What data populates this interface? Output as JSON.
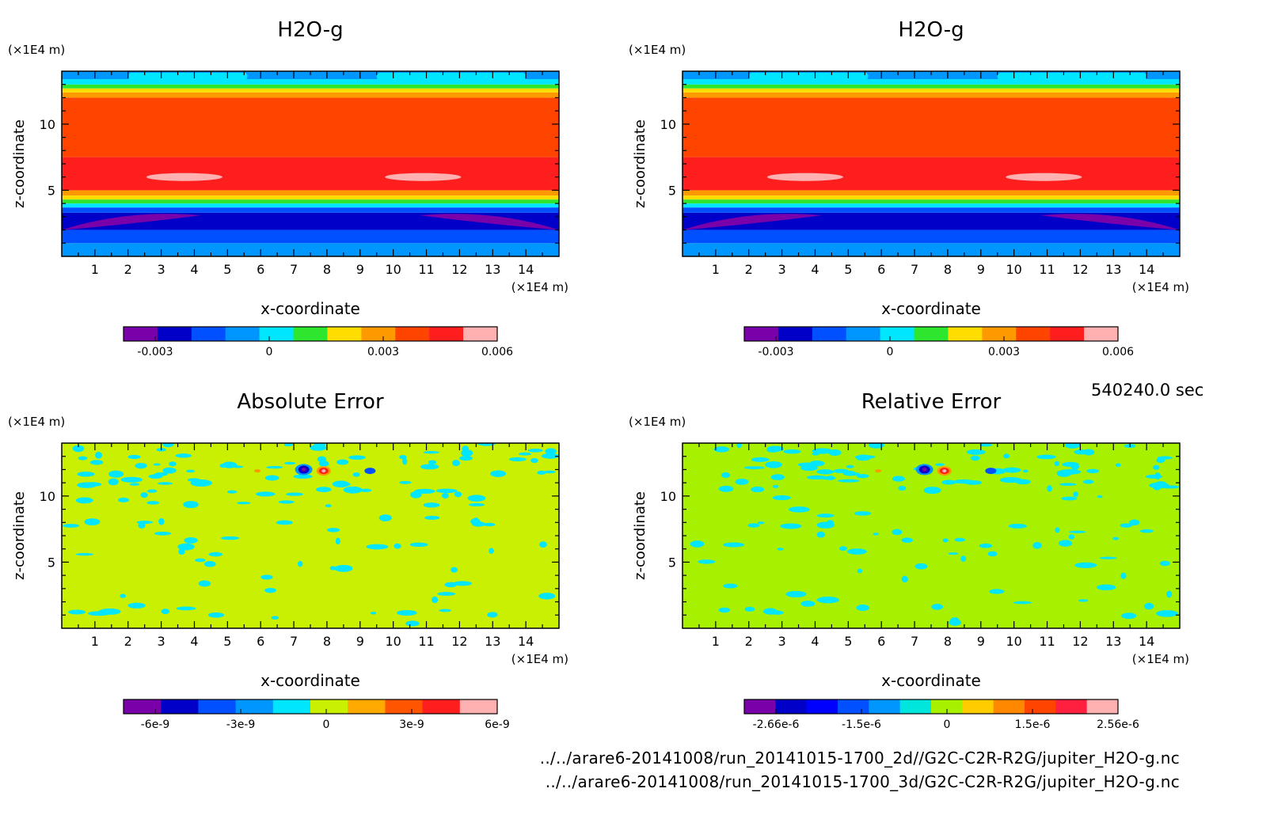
{
  "time": "540240.0 sec",
  "footer": {
    "line1": "../../arare6-20141008/run_20141015-1700_2d//G2C-C2R-R2G/jupiter_H2O-g.nc",
    "line2": "../../arare6-20141008/run_20141015-1700_3d/G2C-C2R-R2G/jupiter_H2O-g.nc"
  },
  "chart_data": [
    {
      "type": "heatmap",
      "title": "H2O-g",
      "xlabel": "x-coordinate",
      "ylabel": "z-coordinate",
      "x_unit": "(×1E4 m)",
      "y_unit": "(×1E4 m)",
      "x_ticks": [
        "1",
        "2",
        "3",
        "4",
        "5",
        "6",
        "7",
        "8",
        "9",
        "10",
        "11",
        "12",
        "13",
        "14"
      ],
      "y_ticks": [
        "5",
        "10"
      ],
      "xlim": [
        0,
        15
      ],
      "ylim": [
        0,
        14
      ],
      "colorbar": {
        "tick_labels": [
          "-0.003",
          "0",
          "0.003",
          "0.006"
        ],
        "colors": [
          "#7a00aa",
          "#0000c8",
          "#0050ff",
          "#0096ff",
          "#00e6ff",
          "#2ee62e",
          "#ffdd00",
          "#ff9900",
          "#ff4400",
          "#ff1e1e",
          "#ffb0b0"
        ]
      },
      "pattern": "h2o"
    },
    {
      "type": "heatmap",
      "title": "H2O-g",
      "xlabel": "x-coordinate",
      "ylabel": "z-coordinate",
      "x_unit": "(×1E4 m)",
      "y_unit": "(×1E4 m)",
      "x_ticks": [
        "1",
        "2",
        "3",
        "4",
        "5",
        "6",
        "7",
        "8",
        "9",
        "10",
        "11",
        "12",
        "13",
        "14"
      ],
      "y_ticks": [
        "5",
        "10"
      ],
      "xlim": [
        0,
        15
      ],
      "ylim": [
        0,
        14
      ],
      "colorbar": {
        "tick_labels": [
          "-0.003",
          "0",
          "0.003",
          "0.006"
        ],
        "colors": [
          "#7a00aa",
          "#0000c8",
          "#0050ff",
          "#0096ff",
          "#00e6ff",
          "#2ee62e",
          "#ffdd00",
          "#ff9900",
          "#ff4400",
          "#ff1e1e",
          "#ffb0b0"
        ]
      },
      "pattern": "h2o"
    },
    {
      "type": "heatmap",
      "title": "Absolute Error",
      "xlabel": "x-coordinate",
      "ylabel": "z-coordinate",
      "x_unit": "(×1E4 m)",
      "y_unit": "(×1E4 m)",
      "x_ticks": [
        "1",
        "2",
        "3",
        "4",
        "5",
        "6",
        "7",
        "8",
        "9",
        "10",
        "11",
        "12",
        "13",
        "14"
      ],
      "y_ticks": [
        "5",
        "10"
      ],
      "xlim": [
        0,
        15
      ],
      "ylim": [
        0,
        14
      ],
      "background": "#c8f000",
      "colorbar": {
        "tick_labels": [
          "-6e-9",
          "-3e-9",
          "0",
          "3e-9",
          "6e-9"
        ],
        "colors": [
          "#7a00aa",
          "#0000c8",
          "#0050ff",
          "#0096ff",
          "#00e6ff",
          "#c8f000",
          "#ffaa00",
          "#ff5500",
          "#ff1e1e",
          "#ffb0b0"
        ]
      },
      "pattern": "error"
    },
    {
      "type": "heatmap",
      "title": "Relative Error",
      "xlabel": "x-coordinate",
      "ylabel": "z-coordinate",
      "x_unit": "(×1E4 m)",
      "y_unit": "(×1E4 m)",
      "x_ticks": [
        "1",
        "2",
        "3",
        "4",
        "5",
        "6",
        "7",
        "8",
        "9",
        "10",
        "11",
        "12",
        "13",
        "14"
      ],
      "y_ticks": [
        "5",
        "10"
      ],
      "xlim": [
        0,
        15
      ],
      "ylim": [
        0,
        14
      ],
      "background": "#a6f000",
      "colorbar": {
        "tick_labels": [
          "-2.66e-6",
          "-1.5e-6",
          "0",
          "1.5e-6",
          "2.56e-6"
        ],
        "colors": [
          "#7a00aa",
          "#0000c8",
          "#0000ff",
          "#0050ff",
          "#0096ff",
          "#00e6dd",
          "#a6f000",
          "#ffcc00",
          "#ff8800",
          "#ff4400",
          "#ff2040",
          "#ffb0b0"
        ]
      },
      "pattern": "error"
    }
  ]
}
